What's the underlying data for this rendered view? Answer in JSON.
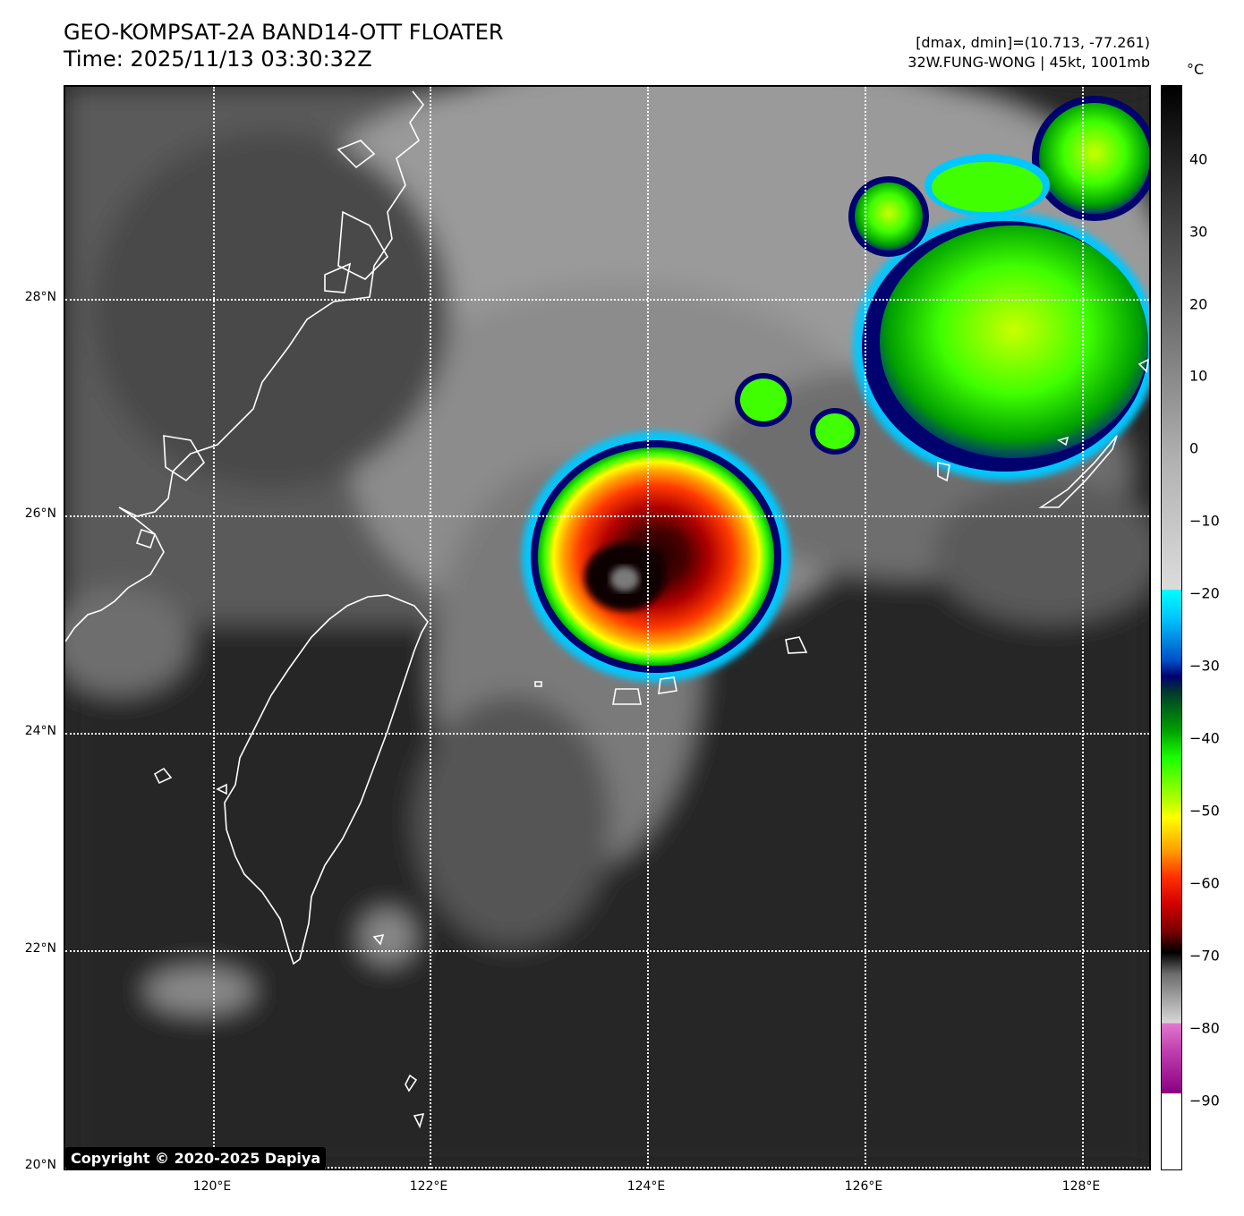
{
  "header": {
    "title_line1": "GEO-KOMPSAT-2A BAND14-OTT FLOATER",
    "title_line2": "Time: 2025/11/13 03:30:32Z",
    "stats": "[dmax, dmin]=(10.713, -77.261)",
    "storm": "32W.FUNG-WONG | 45kt, 1001mb"
  },
  "map": {
    "lat_labels": [
      "28°N",
      "26°N",
      "24°N",
      "22°N",
      "20°N"
    ],
    "lon_labels": [
      "120°E",
      "122°E",
      "124°E",
      "126°E",
      "128°E"
    ],
    "copyright": "Copyright © 2020-2025 Dapiya",
    "colors": {
      "clear_sky": "#262626",
      "low_cloud": "#8a8a8a",
      "coastline": "#ffffff",
      "gridline": "#ffffff"
    }
  },
  "colorbar": {
    "unit": "°C",
    "ticks": [
      "40",
      "30",
      "20",
      "10",
      "0",
      "−10",
      "−20",
      "−30",
      "−40",
      "−50",
      "−60",
      "−70",
      "−80",
      "−90"
    ],
    "range": [
      50,
      -100
    ]
  }
}
